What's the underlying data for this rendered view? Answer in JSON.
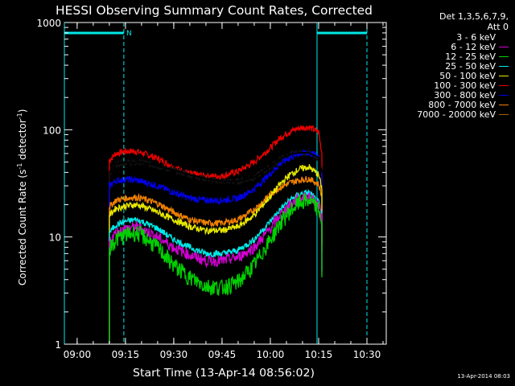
{
  "chart_data": {
    "type": "line",
    "title": "HESSI Observing Summary Count Rates, Corrected",
    "xlabel": "Start Time (13-Apr-14 08:56:02)",
    "ylabel_main": "Corrected Count Rate (s",
    "ylabel_sup1": "-1",
    "ylabel_mid": " detector",
    "ylabel_sup2": "-1",
    "ylabel_end": ")",
    "y_scale": "log",
    "ylim": [
      1,
      1000
    ],
    "xlim": [
      "08:56:02",
      "10:36:00"
    ],
    "x_ticks": [
      "09:00",
      "09:15",
      "09:30",
      "09:45",
      "10:00",
      "10:15",
      "10:30"
    ],
    "y_ticks": [
      "1",
      "10",
      "100",
      "1000"
    ],
    "legend_title_1": "Det 1,3,5,6,7,9,",
    "legend_title_2": "Att 0",
    "flag_label": "N",
    "night_intervals": [
      [
        "08:56:02",
        "09:14:30"
      ],
      [
        "10:14:30",
        "10:30:00"
      ]
    ],
    "night_boundaries": [
      "09:14:30",
      "10:30:00"
    ],
    "day_boundaries": [
      "08:56:02",
      "10:14:30"
    ],
    "series": [
      {
        "name": "3 - 6 keV",
        "color": "#000000",
        "x": [
          "09:10",
          "09:12",
          "09:15",
          "09:18",
          "09:20",
          "09:25",
          "09:30",
          "09:35",
          "09:40",
          "09:45",
          "09:50",
          "09:55",
          "10:00",
          "10:03",
          "10:06",
          "10:09",
          "10:12",
          "10:15",
          "10:16"
        ],
        "values": [
          40,
          48,
          50,
          49,
          50,
          46,
          42,
          38,
          35,
          33,
          33,
          36,
          45,
          53,
          59,
          61,
          61,
          55,
          40
        ]
      },
      {
        "name": "6 - 12 keV",
        "color": "#d000d0",
        "x": [
          "09:10",
          "09:12",
          "09:15",
          "09:18",
          "09:20",
          "09:25",
          "09:30",
          "09:35",
          "09:40",
          "09:45",
          "09:50",
          "09:55",
          "10:00",
          "10:03",
          "10:06",
          "10:09",
          "10:12",
          "10:15",
          "10:16"
        ],
        "values": [
          9,
          11,
          12,
          12.5,
          12,
          10,
          8,
          6.8,
          6,
          6,
          6.5,
          8,
          12,
          16,
          20,
          23,
          24,
          20,
          15
        ]
      },
      {
        "name": "12 - 25 keV",
        "color": "#00d000",
        "x": [
          "09:10",
          "09:12",
          "09:15",
          "09:18",
          "09:20",
          "09:25",
          "09:30",
          "09:35",
          "09:40",
          "09:45",
          "09:50",
          "09:55",
          "10:00",
          "10:03",
          "10:06",
          "10:09",
          "10:12",
          "10:15",
          "10:16"
        ],
        "values": [
          8,
          9.5,
          10.5,
          11,
          10.5,
          8,
          5.5,
          4.2,
          3.5,
          3.4,
          3.8,
          5.5,
          9.5,
          13.5,
          17.5,
          21,
          22,
          18,
          14
        ]
      },
      {
        "name": "25 - 50 keV",
        "color": "#00e8e8",
        "x": [
          "09:10",
          "09:12",
          "09:15",
          "09:18",
          "09:20",
          "09:25",
          "09:30",
          "09:35",
          "09:40",
          "09:45",
          "09:50",
          "09:55",
          "10:00",
          "10:03",
          "10:06",
          "10:09",
          "10:12",
          "10:15",
          "10:16"
        ],
        "values": [
          11,
          13,
          14,
          14.5,
          14,
          12,
          9.5,
          8,
          7,
          7,
          7.5,
          9.5,
          14,
          18,
          22,
          25,
          26,
          21,
          16
        ]
      },
      {
        "name": "50 - 100 keV",
        "color": "#e8e800",
        "x": [
          "09:10",
          "09:12",
          "09:15",
          "09:18",
          "09:20",
          "09:25",
          "09:30",
          "09:35",
          "09:40",
          "09:45",
          "09:50",
          "09:55",
          "10:00",
          "10:03",
          "10:06",
          "10:09",
          "10:12",
          "10:15",
          "10:16"
        ],
        "values": [
          16,
          18.5,
          19.5,
          20,
          19.5,
          17,
          14.5,
          12.5,
          11.5,
          11.5,
          12.5,
          16,
          24,
          31,
          38,
          43,
          45,
          38,
          28
        ]
      },
      {
        "name": "100 - 300 keV",
        "color": "#e80000",
        "x": [
          "09:10",
          "09:12",
          "09:15",
          "09:18",
          "09:20",
          "09:25",
          "09:30",
          "09:35",
          "09:40",
          "09:45",
          "09:50",
          "09:55",
          "10:00",
          "10:03",
          "10:06",
          "10:09",
          "10:12",
          "10:15",
          "10:16"
        ],
        "values": [
          52,
          60,
          63,
          63,
          61,
          54,
          45,
          39,
          37,
          37,
          41,
          50,
          68,
          84,
          96,
          104,
          106,
          95,
          60
        ]
      },
      {
        "name": "300 - 800 keV",
        "color": "#0000e8",
        "x": [
          "09:10",
          "09:12",
          "09:15",
          "09:18",
          "09:20",
          "09:25",
          "09:30",
          "09:35",
          "09:40",
          "09:45",
          "09:50",
          "09:55",
          "10:00",
          "10:03",
          "10:06",
          "10:09",
          "10:12",
          "10:15",
          "10:16"
        ],
        "values": [
          30,
          33.5,
          34.5,
          34,
          33,
          30,
          26,
          23,
          22,
          22,
          23,
          28,
          39,
          48,
          55,
          60,
          61,
          57,
          40
        ]
      },
      {
        "name": "800 - 7000 keV",
        "color": "#f08000",
        "x": [
          "09:10",
          "09:12",
          "09:15",
          "09:18",
          "09:20",
          "09:25",
          "09:30",
          "09:35",
          "09:40",
          "09:45",
          "09:50",
          "09:55",
          "10:00",
          "10:03",
          "10:06",
          "10:09",
          "10:12",
          "10:15",
          "10:16"
        ],
        "values": [
          19,
          22,
          23,
          23.5,
          23,
          20.5,
          17,
          14.5,
          13.5,
          13.5,
          14.5,
          18,
          25,
          29,
          32,
          34,
          35,
          31,
          24
        ]
      },
      {
        "name": "7000 - 20000 keV",
        "color": "#a06000",
        "x": [],
        "values": []
      }
    ]
  },
  "stamp": "13-Apr-2014 08:03"
}
